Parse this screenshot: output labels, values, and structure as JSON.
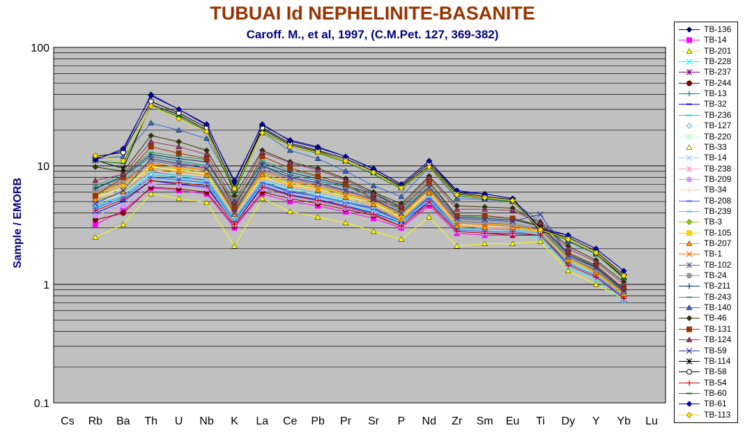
{
  "chart_data": {
    "type": "line",
    "title": "TUBUAI Id NEPHELINITE-BASANITE",
    "subtitle": "Caroff. M., et al, 1997, (C.M.Pet. 127, 369-382)",
    "xlabel": "",
    "ylabel": "Sample / EMORB",
    "yscale": "log",
    "ylim": [
      0.1,
      100
    ],
    "y_ticks": [
      "0.1",
      "1",
      "10",
      "100"
    ],
    "grid": true,
    "legend_position": "right",
    "categories": [
      "Cs",
      "Rb",
      "Ba",
      "Th",
      "U",
      "Nb",
      "K",
      "La",
      "Ce",
      "Pb",
      "Pr",
      "Sr",
      "P",
      "Nd",
      "Zr",
      "Sm",
      "Eu",
      "Ti",
      "Dy",
      "Y",
      "Yb",
      "Lu"
    ],
    "series": [
      {
        "name": "TB-136",
        "color": "#000080",
        "marker": "diamond",
        "values": [
          null,
          11.5,
          13.5,
          40,
          30,
          22,
          7.5,
          22,
          16.5,
          14.5,
          12,
          9.5,
          7,
          11,
          6,
          5.8,
          5.3,
          3,
          2.6,
          2,
          1.3,
          null
        ]
      },
      {
        "name": "TB-14",
        "color": "#ff00ff",
        "marker": "square",
        "values": [
          null,
          3.2,
          4.2,
          6.5,
          6.2,
          5.8,
          3,
          5.8,
          5,
          4.6,
          4.1,
          3.6,
          3,
          4.6,
          2.7,
          2.6,
          2.6,
          2.6,
          1.5,
          1.2,
          0.8,
          null
        ]
      },
      {
        "name": "TB-201",
        "color": "#ffff00",
        "marker": "triangle",
        "values": [
          null,
          2.5,
          3.2,
          5.8,
          5.3,
          4.9,
          2.1,
          5.3,
          4.1,
          3.7,
          3.3,
          2.8,
          2.4,
          3.7,
          2.1,
          2.2,
          2.2,
          2.3,
          1.3,
          1.0,
          0.75,
          null
        ]
      },
      {
        "name": "TB-228",
        "color": "#00ffff",
        "marker": "x",
        "values": [
          null,
          4.5,
          5.2,
          8,
          7.5,
          7,
          3.3,
          6.6,
          5.6,
          5.2,
          4.6,
          4.1,
          3.2,
          5.1,
          2.8,
          2.7,
          2.7,
          2.5,
          1.4,
          1.1,
          0.72,
          null
        ]
      },
      {
        "name": "TB-237",
        "color": "#800080",
        "marker": "star",
        "values": [
          null,
          5,
          6,
          9,
          8,
          7.6,
          3.5,
          7.2,
          6.1,
          5.6,
          5,
          4.4,
          3.4,
          5.5,
          3,
          2.9,
          2.9,
          2.7,
          1.5,
          1.2,
          0.75,
          null
        ]
      },
      {
        "name": "TB-244",
        "color": "#800000",
        "marker": "circle",
        "values": [
          null,
          3.5,
          4,
          6.6,
          6.4,
          6,
          3.1,
          6,
          5.3,
          4.8,
          4.3,
          3.8,
          3.1,
          4.8,
          2.8,
          2.7,
          2.6,
          2.6,
          1.5,
          1.2,
          0.78,
          null
        ]
      },
      {
        "name": "TB-13",
        "color": "#008080",
        "marker": "plus",
        "values": [
          null,
          6.4,
          8,
          12,
          11,
          10,
          4.3,
          10,
          8.4,
          7.5,
          6.6,
          5.6,
          4.2,
          6.8,
          3.5,
          3.4,
          3.3,
          3,
          1.7,
          1.3,
          0.85,
          null
        ]
      },
      {
        "name": "TB-32",
        "color": "#0000ff",
        "marker": "dash",
        "values": [
          null,
          4,
          5,
          7.5,
          7,
          6.6,
          3.2,
          6.8,
          5.7,
          5.2,
          4.6,
          4,
          3.3,
          5,
          2.8,
          2.7,
          2.7,
          2.6,
          1.5,
          1.2,
          0.8,
          null
        ]
      },
      {
        "name": "TB-236",
        "color": "#00ccff",
        "marker": "dash",
        "values": [
          null,
          4.6,
          5.6,
          8.5,
          8,
          7.5,
          3.5,
          7.4,
          6.2,
          5.6,
          5,
          4.3,
          3.4,
          5.4,
          2.9,
          2.8,
          2.8,
          2.6,
          1.5,
          1.2,
          0.78,
          null
        ]
      },
      {
        "name": "TB-127",
        "color": "#ccffff",
        "marker": "diamond",
        "values": [
          null,
          4.8,
          5.8,
          8.6,
          8.2,
          7.8,
          3.6,
          7.6,
          6.4,
          5.8,
          5.1,
          4.5,
          3.5,
          5.6,
          3,
          2.9,
          2.8,
          2.6,
          1.5,
          1.2,
          0.78,
          null
        ]
      },
      {
        "name": "TB-220",
        "color": "#ccffcc",
        "marker": "square",
        "values": [
          null,
          5.2,
          6.2,
          9.2,
          8.6,
          8.2,
          3.8,
          8,
          6.7,
          6.1,
          5.3,
          4.7,
          3.6,
          5.8,
          3.1,
          3,
          2.9,
          2.7,
          1.6,
          1.2,
          0.8,
          null
        ]
      },
      {
        "name": "TB-33",
        "color": "#ffff99",
        "marker": "triangle",
        "values": [
          null,
          5.5,
          6.5,
          9.8,
          9.2,
          8.6,
          3.9,
          8.3,
          7,
          6.3,
          5.5,
          4.8,
          3.7,
          6,
          3.2,
          3.1,
          3,
          2.8,
          1.6,
          1.25,
          0.82,
          null
        ]
      },
      {
        "name": "TB-14",
        "color": "#99ccff",
        "marker": "x",
        "values": [
          null,
          4.3,
          5.4,
          7.8,
          7.4,
          7.2,
          3.3,
          7,
          5.9,
          5.4,
          4.8,
          4.2,
          3.3,
          5.2,
          2.9,
          2.8,
          2.7,
          2.6,
          1.45,
          1.15,
          0.76,
          null
        ]
      },
      {
        "name": "TB-238",
        "color": "#ff99cc",
        "marker": "star",
        "values": [
          null,
          4.9,
          6,
          9,
          8.4,
          8,
          3.7,
          7.8,
          6.6,
          6,
          5.2,
          4.6,
          3.6,
          5.7,
          3.1,
          3,
          2.9,
          2.7,
          1.55,
          1.2,
          0.8,
          null
        ]
      },
      {
        "name": "TB-209",
        "color": "#cc99ff",
        "marker": "circle",
        "values": [
          null,
          3.8,
          4.6,
          7,
          6.8,
          6.4,
          3.2,
          6.4,
          5.4,
          5,
          4.4,
          3.9,
          3.1,
          4.9,
          2.8,
          2.7,
          2.7,
          2.6,
          1.45,
          1.15,
          0.75,
          null
        ]
      },
      {
        "name": "TB-34",
        "color": "#ffcc99",
        "marker": "plus",
        "values": [
          null,
          5.4,
          6.4,
          9.5,
          9,
          8.4,
          3.8,
          8.2,
          6.9,
          6.2,
          5.4,
          4.7,
          3.6,
          5.9,
          3.2,
          3.1,
          3,
          2.8,
          1.6,
          1.25,
          0.82,
          null
        ]
      },
      {
        "name": "TB-208",
        "color": "#3366ff",
        "marker": "dash",
        "values": [
          null,
          4.4,
          5.4,
          8,
          7.6,
          7.2,
          3.4,
          7.2,
          6,
          5.5,
          4.9,
          4.3,
          3.4,
          5.3,
          2.9,
          2.8,
          2.8,
          2.6,
          1.5,
          1.18,
          0.78,
          null
        ]
      },
      {
        "name": "TB-239",
        "color": "#33cccc",
        "marker": "dash",
        "values": [
          null,
          5,
          6,
          8.8,
          8.3,
          7.9,
          3.6,
          7.7,
          6.5,
          5.9,
          5.2,
          4.5,
          3.5,
          5.6,
          3,
          2.9,
          2.9,
          2.7,
          1.55,
          1.2,
          0.8,
          null
        ]
      },
      {
        "name": "TB-3",
        "color": "#99cc00",
        "marker": "diamond",
        "values": [
          null,
          5.6,
          6.8,
          10,
          9.4,
          8.8,
          4,
          8.6,
          7.2,
          6.5,
          5.7,
          5,
          3.8,
          6.2,
          3.3,
          3.2,
          3.1,
          2.8,
          1.65,
          1.28,
          0.84,
          null
        ]
      },
      {
        "name": "TB-105",
        "color": "#ffcc00",
        "marker": "square",
        "values": [
          null,
          5.8,
          7,
          10,
          9.5,
          9.2,
          4.4,
          8,
          7.2,
          6.6,
          5.8,
          5,
          3.6,
          6.4,
          3.3,
          3.2,
          3.2,
          2.8,
          1.6,
          1.25,
          0.82,
          null
        ]
      },
      {
        "name": "TB-207",
        "color": "#ff9900",
        "marker": "triangle",
        "values": [
          null,
          5.2,
          6,
          9.5,
          8.9,
          8.3,
          3.9,
          8.4,
          6.8,
          6.2,
          5.4,
          4.7,
          3.5,
          5.9,
          3.1,
          3,
          3,
          2.8,
          1.6,
          1.25,
          0.82,
          null
        ]
      },
      {
        "name": "TB-1",
        "color": "#ff6600",
        "marker": "x",
        "values": [
          null,
          5.8,
          7.2,
          10.5,
          9.8,
          9.3,
          4.2,
          9,
          7.5,
          6.8,
          5.9,
          5.1,
          3.9,
          6.3,
          3.3,
          3.2,
          3.1,
          2.9,
          1.7,
          1.3,
          0.85,
          null
        ]
      },
      {
        "name": "TB-102",
        "color": "#666699",
        "marker": "star",
        "values": [
          null,
          6,
          7.4,
          11,
          10.2,
          9.6,
          4.3,
          9.3,
          7.8,
          7,
          6.1,
          5.3,
          4,
          6.5,
          3.4,
          3.3,
          3.2,
          2.9,
          1.7,
          1.32,
          0.86,
          null
        ]
      },
      {
        "name": "TB-24",
        "color": "#969696",
        "marker": "circle",
        "values": [
          null,
          6.2,
          7.6,
          11.2,
          10.5,
          9.9,
          4.4,
          9.6,
          8,
          7.2,
          6.3,
          5.4,
          4.1,
          6.7,
          3.5,
          3.4,
          3.3,
          3,
          1.75,
          1.35,
          0.88,
          null
        ]
      },
      {
        "name": "TB-211",
        "color": "#003366",
        "marker": "plus",
        "values": [
          null,
          6.5,
          8.2,
          12.5,
          11.5,
          10.8,
          4.7,
          10.6,
          8.8,
          7.8,
          6.8,
          5.8,
          4.4,
          7.2,
          3.7,
          3.6,
          3.5,
          3.1,
          1.8,
          1.4,
          0.9,
          null
        ]
      },
      {
        "name": "TB-243",
        "color": "#339966",
        "marker": "dash",
        "values": [
          null,
          6.8,
          8.6,
          13,
          12,
          11.3,
          4.9,
          11,
          9.2,
          8.1,
          7.1,
          6,
          4.5,
          7.5,
          3.8,
          3.7,
          3.6,
          3.2,
          1.85,
          1.42,
          0.92,
          null
        ]
      },
      {
        "name": "TB-140",
        "color": "#3366cc",
        "marker": "triangle",
        "values": [
          null,
          11.5,
          12,
          23,
          20,
          17,
          6.5,
          19,
          13.5,
          11.5,
          9,
          6.8,
          5.5,
          9.8,
          5.3,
          5.2,
          5,
          3.4,
          2.3,
          1.8,
          1.15,
          null
        ]
      },
      {
        "name": "TB-46",
        "color": "#333300",
        "marker": "diamond",
        "values": [
          null,
          9.8,
          9,
          18,
          16,
          13.5,
          5.6,
          13.5,
          10.8,
          9.5,
          7.8,
          6,
          4.8,
          8.2,
          4.6,
          4.5,
          4.4,
          3.3,
          2.1,
          1.6,
          1.05,
          null
        ]
      },
      {
        "name": "TB-131",
        "color": "#993300",
        "marker": "square",
        "values": [
          null,
          5.6,
          8,
          14.5,
          12.8,
          11.5,
          4.4,
          12,
          9.6,
          8.2,
          7,
          5.3,
          4.4,
          7.2,
          3.8,
          3.8,
          3.6,
          3.1,
          1.85,
          1.45,
          0.92,
          null
        ]
      },
      {
        "name": "TB-124",
        "color": "#993366",
        "marker": "triangle",
        "values": [
          null,
          7.5,
          8.5,
          16,
          14.5,
          12.5,
          5,
          13,
          10.6,
          9.2,
          7.6,
          5.8,
          4.6,
          8,
          4.3,
          4.3,
          4.2,
          3.3,
          2,
          1.55,
          1,
          null
        ]
      },
      {
        "name": "TB-59",
        "color": "#333399",
        "marker": "x",
        "values": [
          null,
          4.8,
          6.2,
          11.5,
          10.5,
          9.5,
          4,
          10,
          8,
          7.2,
          6.2,
          5.2,
          4,
          6.6,
          3.6,
          3.5,
          3.4,
          3.9,
          1.75,
          1.38,
          0.88,
          null
        ]
      },
      {
        "name": "TB-114",
        "color": "#000000",
        "marker": "star",
        "values": [
          null,
          11.2,
          9.5,
          33,
          27,
          20,
          6.2,
          20.5,
          15,
          13.2,
          11,
          8.8,
          6.6,
          10,
          5.8,
          5.4,
          5.1,
          3,
          2.4,
          1.85,
          1.15,
          null
        ]
      },
      {
        "name": "TB-58",
        "color": "#000000",
        "marker": "opencircle",
        "values": [
          null,
          12,
          13,
          35,
          28,
          21,
          6.5,
          21,
          15.5,
          13.5,
          11.5,
          9,
          6.8,
          10.5,
          6,
          5.5,
          5.2,
          2.8,
          2.5,
          1.9,
          1.2,
          null
        ]
      },
      {
        "name": "TB-54",
        "color": "#cc0000",
        "marker": "plus",
        "values": [
          null,
          4.2,
          5.2,
          7.5,
          7.2,
          6.8,
          3.2,
          6.6,
          5.6,
          5.1,
          4.5,
          3.9,
          3.1,
          5,
          2.8,
          2.7,
          2.7,
          2.6,
          1.45,
          1.15,
          0.76,
          null
        ]
      },
      {
        "name": "TB-60",
        "color": "#008000",
        "marker": "dash",
        "values": [
          null,
          11,
          10.5,
          32,
          26,
          19.5,
          6,
          19.5,
          14.5,
          12.8,
          10.8,
          8.5,
          6.4,
          9.7,
          5.6,
          5.3,
          5,
          2.9,
          2.35,
          1.8,
          1.12,
          null
        ]
      },
      {
        "name": "TB-61",
        "color": "#0000aa",
        "marker": "diamond",
        "values": [
          null,
          11.2,
          14,
          39,
          30,
          22.5,
          7.2,
          22.5,
          16.2,
          14.2,
          12,
          9.4,
          7,
          11,
          6.2,
          5.8,
          5.3,
          2.9,
          2.6,
          2,
          1.3,
          null
        ]
      },
      {
        "name": "TB-113",
        "color": "#ffdd00",
        "marker": "diamond",
        "values": [
          null,
          12.2,
          11,
          32,
          25,
          19.5,
          6.4,
          19,
          14.5,
          13,
          11,
          8.8,
          6.5,
          9.8,
          5.7,
          5.4,
          5.1,
          2.9,
          2.4,
          1.85,
          1.18,
          null
        ]
      }
    ]
  }
}
